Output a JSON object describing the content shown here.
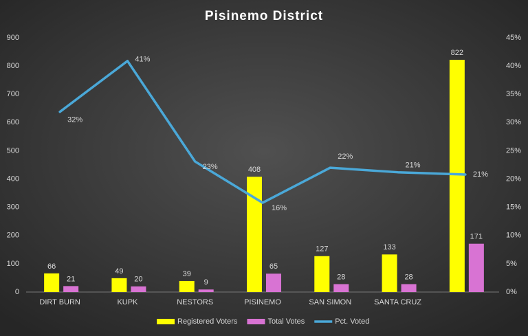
{
  "chart_data": {
    "type": "bar-line",
    "title": "Pisinemo District",
    "categories": [
      "DIRT BURN",
      "KUPK",
      "NESTORS",
      "PISINEMO",
      "SAN SIMON",
      "SANTA CRUZ",
      null
    ],
    "series": [
      {
        "name": "Registered Voters",
        "type": "bar",
        "color": "#ffff00",
        "values": [
          66,
          49,
          39,
          408,
          127,
          133,
          822
        ]
      },
      {
        "name": "Total Votes",
        "type": "bar",
        "color": "#d873d3",
        "values": [
          21,
          20,
          9,
          65,
          28,
          28,
          171
        ]
      },
      {
        "name": "Pct. Voted",
        "type": "line",
        "axis": "y2",
        "color": "#4aa8d8",
        "values": [
          31.9,
          40.9,
          23.1,
          15.8,
          22.0,
          21.2,
          20.8
        ],
        "value_labels": [
          "32%",
          "41%",
          "23%",
          "16%",
          "22%",
          "21%",
          "21%"
        ]
      }
    ],
    "ylim": [
      0,
      900
    ],
    "yticks": [
      0,
      100,
      200,
      300,
      400,
      500,
      600,
      700,
      800,
      900
    ],
    "y2lim": [
      0,
      45
    ],
    "y2ticks": [
      {
        "value": 0,
        "label": "0%"
      },
      {
        "value": 5,
        "label": "5%"
      },
      {
        "value": 10,
        "label": "10%"
      },
      {
        "value": 15,
        "label": "15%"
      },
      {
        "value": 20,
        "label": "20%"
      },
      {
        "value": 25,
        "label": "25%"
      },
      {
        "value": 30,
        "label": "30%"
      },
      {
        "value": 35,
        "label": "35%"
      },
      {
        "value": 40,
        "label": "40%"
      },
      {
        "value": 45,
        "label": "45%"
      }
    ],
    "grid": false,
    "legend": "bottom"
  }
}
